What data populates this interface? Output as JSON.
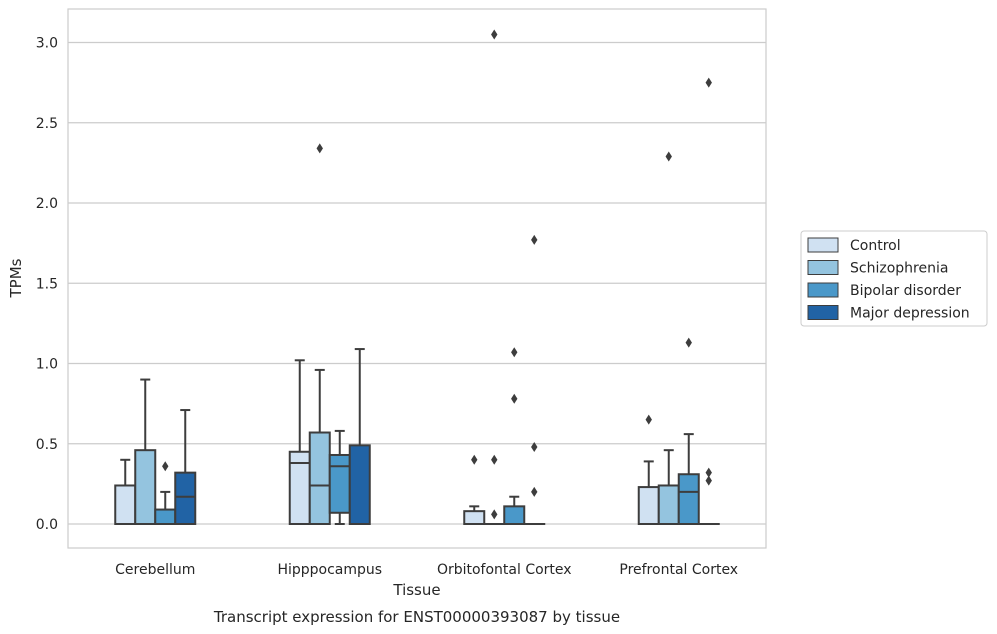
{
  "chart_data": {
    "type": "box",
    "caption": "Transcript expression for ENST00000393087 by tissue",
    "xlabel": "Tissue",
    "ylabel": "TPMs",
    "ylim": [
      -0.15,
      3.2
    ],
    "yticks": [
      "0.0",
      "0.5",
      "1.0",
      "1.5",
      "2.0",
      "2.5",
      "3.0"
    ],
    "grid": true,
    "legend_position": "right",
    "categories": [
      "Cerebellum",
      "Hipppocampus",
      "Orbitofontal Cortex",
      "Prefrontal Cortex"
    ],
    "series": [
      {
        "name": "Control",
        "color": "#d0e1f2",
        "boxes": [
          {
            "q1": 0.0,
            "median": 0.0,
            "q3": 0.24,
            "whisker_low": 0.0,
            "whisker_high": 0.4,
            "outliers": []
          },
          {
            "q1": 0.0,
            "median": 0.38,
            "q3": 0.45,
            "whisker_low": 0.0,
            "whisker_high": 1.02,
            "outliers": []
          },
          {
            "q1": 0.0,
            "median": 0.0,
            "q3": 0.08,
            "whisker_low": 0.0,
            "whisker_high": 0.11,
            "outliers": [
              0.4
            ]
          },
          {
            "q1": 0.0,
            "median": 0.0,
            "q3": 0.23,
            "whisker_low": 0.0,
            "whisker_high": 0.39,
            "outliers": [
              0.65
            ]
          }
        ]
      },
      {
        "name": "Schizophrenia",
        "color": "#94c4df",
        "boxes": [
          {
            "q1": 0.0,
            "median": 0.0,
            "q3": 0.46,
            "whisker_low": 0.0,
            "whisker_high": 0.9,
            "outliers": []
          },
          {
            "q1": 0.0,
            "median": 0.24,
            "q3": 0.57,
            "whisker_low": 0.0,
            "whisker_high": 0.96,
            "outliers": [
              2.34
            ]
          },
          {
            "q1": 0.0,
            "median": 0.0,
            "q3": 0.0,
            "whisker_low": 0.0,
            "whisker_high": 0.0,
            "outliers": [
              0.06,
              0.4,
              3.05
            ]
          },
          {
            "q1": 0.0,
            "median": 0.0,
            "q3": 0.24,
            "whisker_low": 0.0,
            "whisker_high": 0.46,
            "outliers": [
              2.29
            ]
          }
        ]
      },
      {
        "name": "Bipolar disorder",
        "color": "#4a98c9",
        "boxes": [
          {
            "q1": 0.0,
            "median": 0.0,
            "q3": 0.09,
            "whisker_low": 0.0,
            "whisker_high": 0.2,
            "outliers": [
              0.36
            ]
          },
          {
            "q1": 0.07,
            "median": 0.36,
            "q3": 0.43,
            "whisker_low": 0.0,
            "whisker_high": 0.58,
            "outliers": []
          },
          {
            "q1": 0.0,
            "median": 0.0,
            "q3": 0.11,
            "whisker_low": 0.0,
            "whisker_high": 0.17,
            "outliers": [
              0.78,
              1.07
            ]
          },
          {
            "q1": 0.0,
            "median": 0.2,
            "q3": 0.31,
            "whisker_low": 0.0,
            "whisker_high": 0.56,
            "outliers": [
              1.13
            ]
          }
        ]
      },
      {
        "name": "Major depression",
        "color": "#2163a5",
        "boxes": [
          {
            "q1": 0.0,
            "median": 0.17,
            "q3": 0.32,
            "whisker_low": 0.0,
            "whisker_high": 0.71,
            "outliers": []
          },
          {
            "q1": 0.0,
            "median": 0.0,
            "q3": 0.49,
            "whisker_low": 0.0,
            "whisker_high": 1.09,
            "outliers": []
          },
          {
            "q1": 0.0,
            "median": 0.0,
            "q3": 0.0,
            "whisker_low": 0.0,
            "whisker_high": 0.0,
            "outliers": [
              0.2,
              0.48,
              1.77
            ]
          },
          {
            "q1": 0.0,
            "median": 0.0,
            "q3": 0.0,
            "whisker_low": 0.0,
            "whisker_high": 0.0,
            "outliers": [
              0.27,
              0.32,
              2.75
            ]
          }
        ]
      }
    ]
  }
}
